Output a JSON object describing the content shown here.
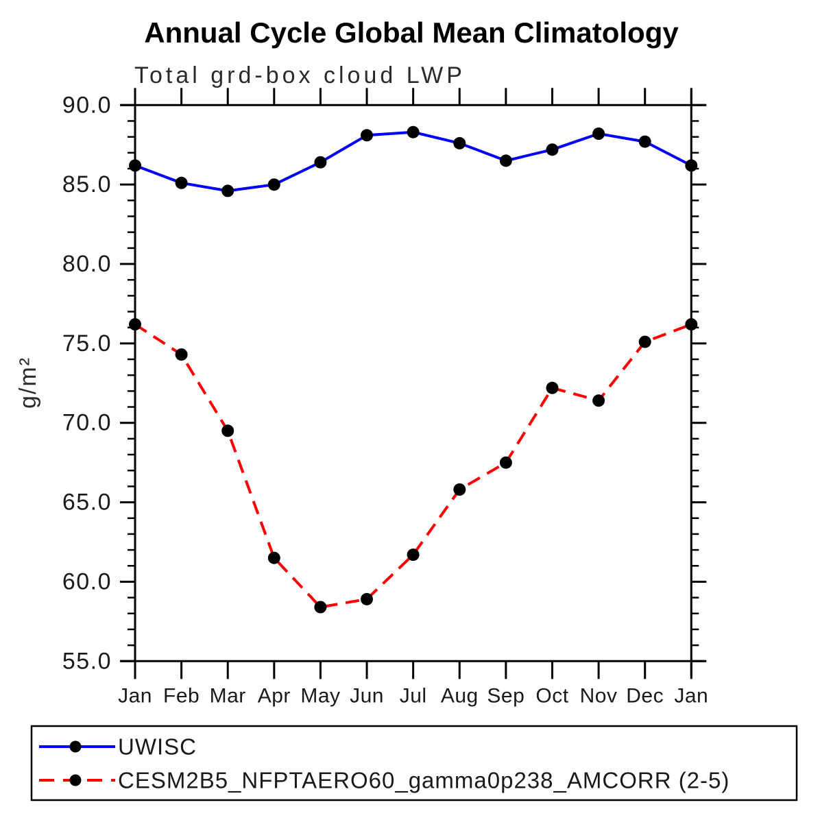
{
  "figure": {
    "title": "Annual Cycle Global Mean Climatology",
    "subtitle": "Total grd-box cloud LWP"
  },
  "chart_data": {
    "type": "line",
    "title": "Annual Cycle Global Mean Climatology",
    "subtitle": "Total grd-box cloud LWP",
    "xlabel": "",
    "ylabel": "g/m²",
    "categories": [
      "Jan",
      "Feb",
      "Mar",
      "Apr",
      "May",
      "Jun",
      "Jul",
      "Aug",
      "Sep",
      "Oct",
      "Nov",
      "Dec",
      "Jan"
    ],
    "ylim": [
      55.0,
      90.0
    ],
    "y_major_ticks": [
      55.0,
      60.0,
      65.0,
      70.0,
      75.0,
      80.0,
      85.0,
      90.0
    ],
    "y_tick_labels": [
      "55.0",
      "60.0",
      "65.0",
      "70.0",
      "75.0",
      "80.0",
      "85.0",
      "90.0"
    ],
    "y_minor_tick_step": 1.0,
    "grid": false,
    "legend_position": "bottom-left-box",
    "axis_color": "#000000",
    "series": [
      {
        "name": "UWISC",
        "color": "#0000ff",
        "line_style": "solid",
        "marker": "filled-circle",
        "marker_color": "#000000",
        "values": [
          86.2,
          85.1,
          84.6,
          85.0,
          86.4,
          88.1,
          88.3,
          87.6,
          86.5,
          87.2,
          88.2,
          87.7,
          86.2
        ]
      },
      {
        "name": "CESM2B5_NFPTAERO60_gamma0p238_AMCORR (2-5)",
        "color": "#ff0000",
        "line_style": "dashed",
        "marker": "filled-circle",
        "marker_color": "#000000",
        "values": [
          76.2,
          74.3,
          69.5,
          61.5,
          58.4,
          58.9,
          61.7,
          65.8,
          67.5,
          72.2,
          71.4,
          75.1,
          76.2
        ]
      }
    ]
  }
}
